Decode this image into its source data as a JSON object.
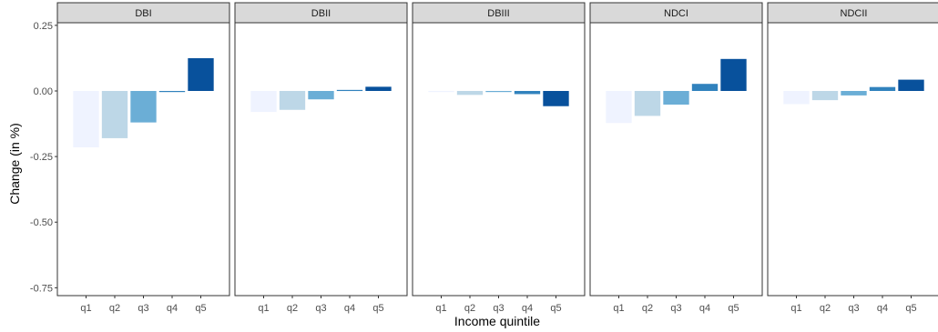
{
  "chart_data": {
    "type": "bar",
    "xlabel": "Income quintile",
    "ylabel": "Change (in %)",
    "ylim": [
      -0.78,
      0.26
    ],
    "yticks": [
      0.25,
      0.0,
      -0.25,
      -0.5,
      -0.75
    ],
    "ytick_labels": [
      "0.25",
      "0.00",
      "-0.25",
      "-0.50",
      "-0.75"
    ],
    "categories": [
      "q1",
      "q2",
      "q3",
      "q4",
      "q5"
    ],
    "category_colors": [
      "#eff3ff",
      "#bdd7e7",
      "#6baed6",
      "#3182bd",
      "#08519c"
    ],
    "grid": false,
    "legend": "none",
    "facets": [
      {
        "name": "DBI",
        "values": [
          -0.215,
          -0.18,
          -0.12,
          -0.003,
          0.125
        ]
      },
      {
        "name": "DBII",
        "values": [
          -0.08,
          -0.072,
          -0.032,
          0.004,
          0.016
        ]
      },
      {
        "name": "DBIII",
        "values": [
          -0.004,
          -0.015,
          -0.003,
          -0.012,
          -0.058
        ]
      },
      {
        "name": "NDCI",
        "values": [
          -0.122,
          -0.095,
          -0.052,
          0.027,
          0.122
        ]
      },
      {
        "name": "NDCII",
        "values": [
          -0.05,
          -0.035,
          -0.017,
          0.015,
          0.043
        ]
      }
    ]
  }
}
